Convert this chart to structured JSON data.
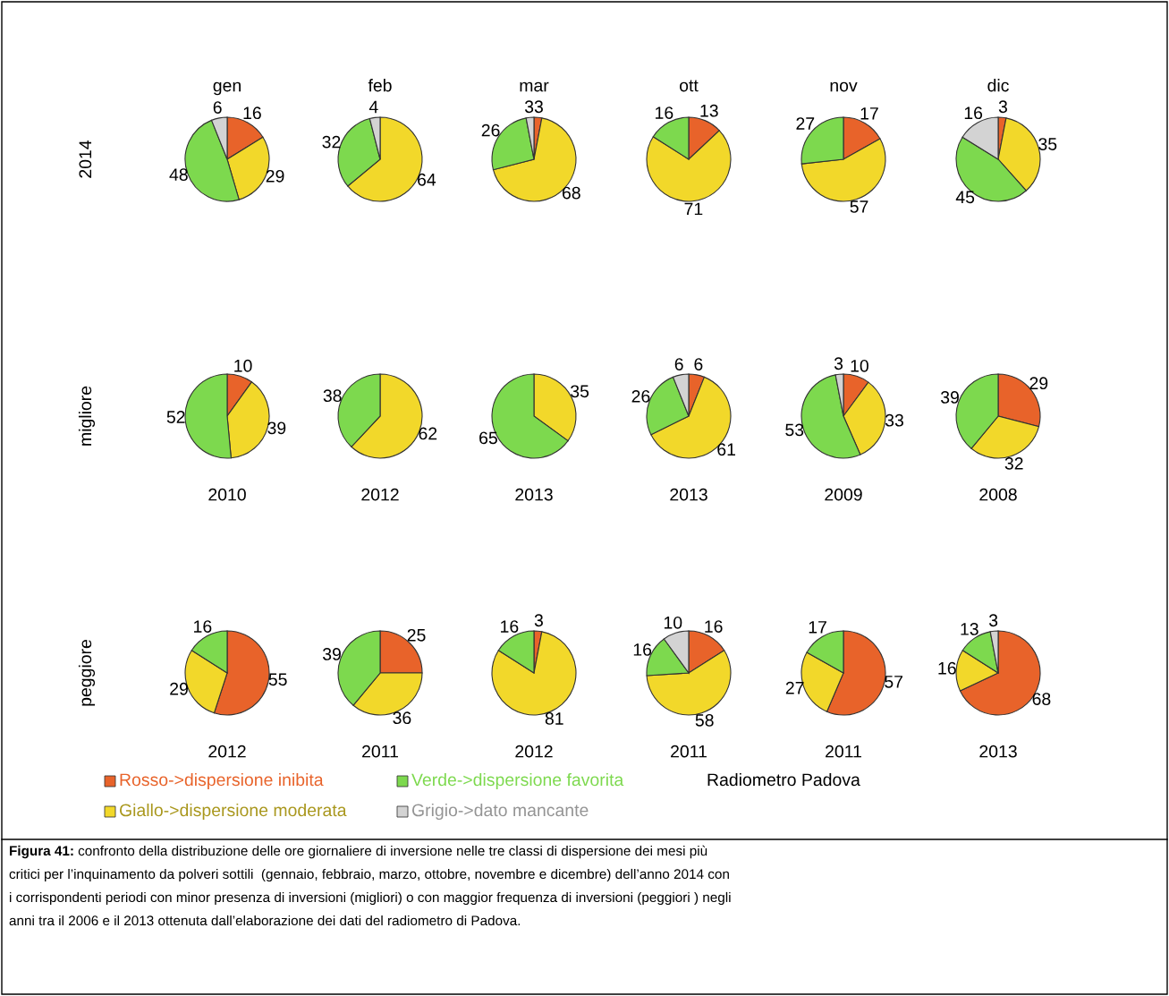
{
  "chart_data": [
    {
      "type": "pie",
      "title": "gen",
      "ylabel": "2014",
      "categories": [
        "Rosso->dispersione inibita",
        "Giallo->dispersione moderata",
        "Verde->dispersione favorita",
        "Grigio->dato mancante"
      ],
      "values": [
        16,
        29,
        48,
        6
      ],
      "colors": [
        "#e8632a",
        "#f2d82a",
        "#7dd94e",
        "#d3d3d3"
      ],
      "data_labels": true,
      "legend": "bottom"
    },
    {
      "type": "pie",
      "title": "feb",
      "categories": [
        null,
        null,
        null,
        null
      ],
      "values": [
        null,
        64,
        32,
        4
      ],
      "colors": [
        "#e8632a",
        "#f2d82a",
        "#7dd94e",
        "#d3d3d3"
      ],
      "data_labels": true
    },
    {
      "type": "pie",
      "title": "mar",
      "categories": [
        null,
        null,
        null,
        null
      ],
      "values": [
        3,
        68,
        26,
        3
      ],
      "colors": [
        "#e8632a",
        "#f2d82a",
        "#7dd94e",
        "#d3d3d3"
      ],
      "data_labels": true
    },
    {
      "type": "pie",
      "title": "ott",
      "categories": [
        null,
        null,
        null,
        null
      ],
      "values": [
        13,
        71,
        16,
        null
      ],
      "colors": [
        "#e8632a",
        "#f2d82a",
        "#7dd94e",
        "#d3d3d3"
      ],
      "data_labels": true
    },
    {
      "type": "pie",
      "title": "nov",
      "categories": [
        null,
        null,
        null,
        null
      ],
      "values": [
        17,
        57,
        27,
        null
      ],
      "colors": [
        "#e8632a",
        "#f2d82a",
        "#7dd94e",
        "#d3d3d3"
      ],
      "data_labels": true
    },
    {
      "type": "pie",
      "title": "dic",
      "categories": [
        null,
        null,
        null,
        null
      ],
      "values": [
        3,
        35,
        45,
        16
      ],
      "colors": [
        "#e8632a",
        "#f2d82a",
        "#7dd94e",
        "#d3d3d3"
      ],
      "data_labels": true
    },
    {
      "type": "pie",
      "xlabel": "2010",
      "ylabel": "migliore",
      "categories": [
        null,
        null,
        null,
        null
      ],
      "values": [
        10,
        39,
        52,
        null
      ],
      "colors": [
        "#e8632a",
        "#f2d82a",
        "#7dd94e",
        "#d3d3d3"
      ],
      "data_labels": true
    },
    {
      "type": "pie",
      "xlabel": "2012",
      "categories": [
        null,
        null,
        null,
        null
      ],
      "values": [
        null,
        62,
        38,
        null
      ],
      "colors": [
        "#e8632a",
        "#f2d82a",
        "#7dd94e",
        "#d3d3d3"
      ],
      "data_labels": true
    },
    {
      "type": "pie",
      "xlabel": "2013",
      "categories": [
        null,
        null,
        null,
        null
      ],
      "values": [
        null,
        35,
        65,
        null
      ],
      "colors": [
        "#e8632a",
        "#f2d82a",
        "#7dd94e",
        "#d3d3d3"
      ],
      "data_labels": true
    },
    {
      "type": "pie",
      "xlabel": "2013",
      "categories": [
        null,
        null,
        null,
        null
      ],
      "values": [
        6,
        61,
        26,
        6
      ],
      "colors": [
        "#e8632a",
        "#f2d82a",
        "#7dd94e",
        "#d3d3d3"
      ],
      "data_labels": true
    },
    {
      "type": "pie",
      "xlabel": "2009",
      "categories": [
        null,
        null,
        null,
        null
      ],
      "values": [
        10,
        33,
        53,
        3
      ],
      "colors": [
        "#e8632a",
        "#f2d82a",
        "#7dd94e",
        "#d3d3d3"
      ],
      "data_labels": true
    },
    {
      "type": "pie",
      "xlabel": "2008",
      "categories": [
        null,
        null,
        null,
        null
      ],
      "values": [
        29,
        32,
        39,
        null
      ],
      "colors": [
        "#e8632a",
        "#f2d82a",
        "#7dd94e",
        "#d3d3d3"
      ],
      "data_labels": true
    },
    {
      "type": "pie",
      "xlabel": "2012",
      "ylabel": "peggiore",
      "categories": [
        null,
        null,
        null,
        null
      ],
      "values": [
        55,
        29,
        16,
        null
      ],
      "colors": [
        "#e8632a",
        "#f2d82a",
        "#7dd94e",
        "#d3d3d3"
      ],
      "data_labels": true
    },
    {
      "type": "pie",
      "xlabel": "2011",
      "categories": [
        null,
        null,
        null,
        null
      ],
      "values": [
        25,
        36,
        39,
        null
      ],
      "colors": [
        "#e8632a",
        "#f2d82a",
        "#7dd94e",
        "#d3d3d3"
      ],
      "data_labels": true
    },
    {
      "type": "pie",
      "xlabel": "2012",
      "categories": [
        null,
        null,
        null,
        null
      ],
      "values": [
        3,
        81,
        16,
        null
      ],
      "colors": [
        "#e8632a",
        "#f2d82a",
        "#7dd94e",
        "#d3d3d3"
      ],
      "data_labels": true
    },
    {
      "type": "pie",
      "xlabel": "2011",
      "categories": [
        null,
        null,
        null,
        null
      ],
      "values": [
        16,
        58,
        16,
        10
      ],
      "colors": [
        "#e8632a",
        "#f2d82a",
        "#7dd94e",
        "#d3d3d3"
      ],
      "data_labels": true
    },
    {
      "type": "pie",
      "xlabel": "2011",
      "categories": [
        null,
        null,
        null,
        null
      ],
      "values": [
        57,
        27,
        17,
        null
      ],
      "colors": [
        "#e8632a",
        "#f2d82a",
        "#7dd94e",
        "#d3d3d3"
      ],
      "data_labels": true
    },
    {
      "type": "pie",
      "xlabel": "2013",
      "categories": [
        null,
        null,
        null,
        null
      ],
      "values": [
        68,
        16,
        13,
        3
      ],
      "colors": [
        "#e8632a",
        "#f2d82a",
        "#7dd94e",
        "#d3d3d3"
      ],
      "data_labels": true
    },
    {
      "type": "other",
      "annotations": [
        "Radiometro Padova",
        "Figura 41:",
        "confronto della distribuzione delle ore giornaliere di inversione nelle tre classi di dispersione dei mesi più\ncritici per l’inquinamento da polveri sottili  (gennaio, febbraio, marzo, ottobre, novembre e dicembre) dell’anno 2014 con\ni corrispondenti periodi con minor presenza di inversioni (migliori) o con maggior frequenza di inversioni (peggiori ) negli\nanni tra il 2006 e il 2013 ottenuta dall’elaborazione dei dati del radiometro di Padova."
      ]
    }
  ]
}
